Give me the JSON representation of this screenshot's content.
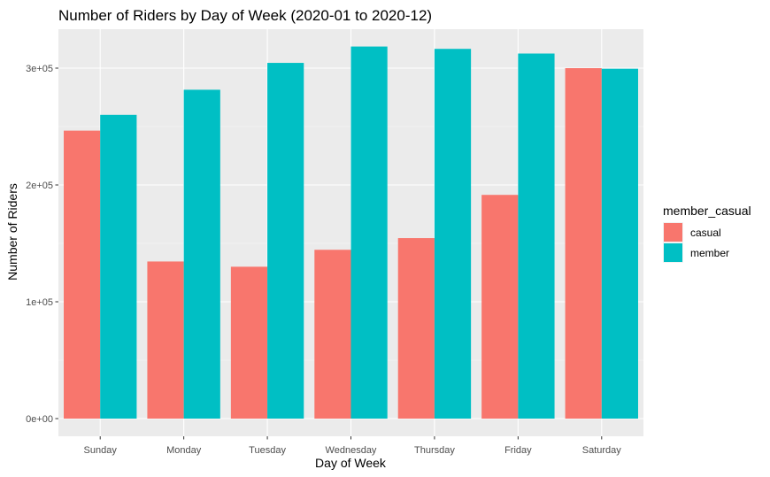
{
  "chart_data": {
    "type": "bar",
    "title": "Number of Riders by Day of Week (2020-01 to 2020-12)",
    "xlabel": "Day of Week",
    "ylabel": "Number of Riders",
    "categories": [
      "Sunday",
      "Monday",
      "Tuesday",
      "Wednesday",
      "Thursday",
      "Friday",
      "Saturday"
    ],
    "series": [
      {
        "name": "casual",
        "color": "#F8766D",
        "values": [
          246500,
          134500,
          130000,
          144500,
          154500,
          191500,
          300000
        ]
      },
      {
        "name": "member",
        "color": "#00BFC4",
        "values": [
          260000,
          281500,
          304500,
          318500,
          316500,
          312500,
          299500
        ]
      }
    ],
    "ylim": [
      0,
      330000
    ],
    "yticks": [
      0,
      100000,
      200000,
      300000
    ],
    "ytick_labels": [
      "0e+00",
      "1e+05",
      "2e+05",
      "3e+05"
    ],
    "grid": true,
    "legend": {
      "title": "member_casual",
      "position": "right"
    },
    "colors": {
      "panel": "#EBEBEB",
      "grid_major": "#FFFFFF",
      "grid_minor": "#F7F7F7"
    }
  }
}
